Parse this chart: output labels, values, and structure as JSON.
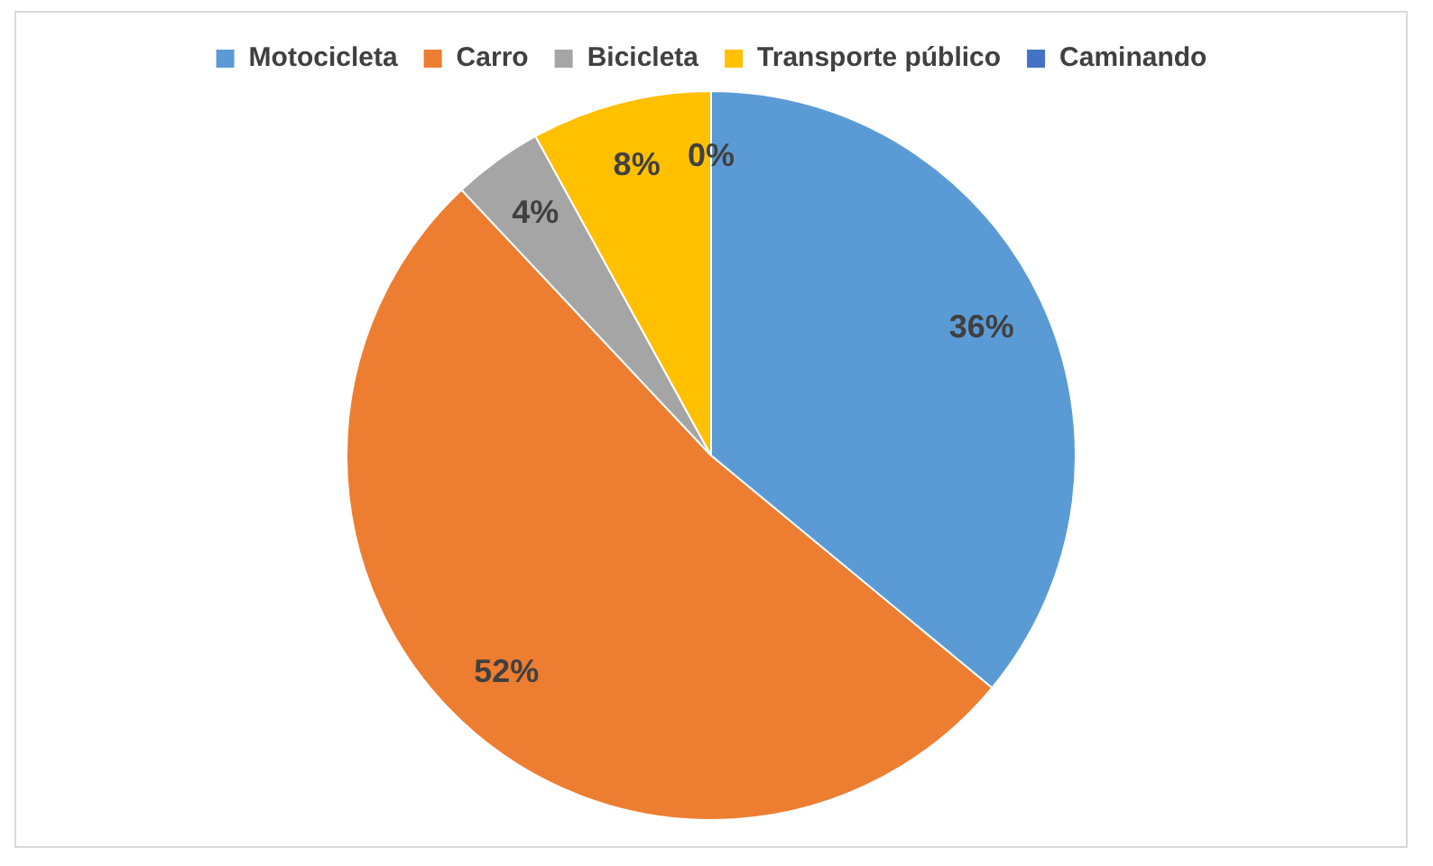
{
  "chart_data": {
    "type": "pie",
    "categories": [
      "Motocicleta",
      "Carro",
      "Bicicleta",
      "Transporte público",
      "Caminando"
    ],
    "values": [
      36,
      52,
      4,
      8,
      0
    ],
    "colors": [
      "#5b9bd5",
      "#ed7d31",
      "#a5a5a5",
      "#ffc000",
      "#4472c4"
    ],
    "value_labels": [
      "36%",
      "52%",
      "4%",
      "8%",
      "0%"
    ],
    "legend": "top"
  }
}
